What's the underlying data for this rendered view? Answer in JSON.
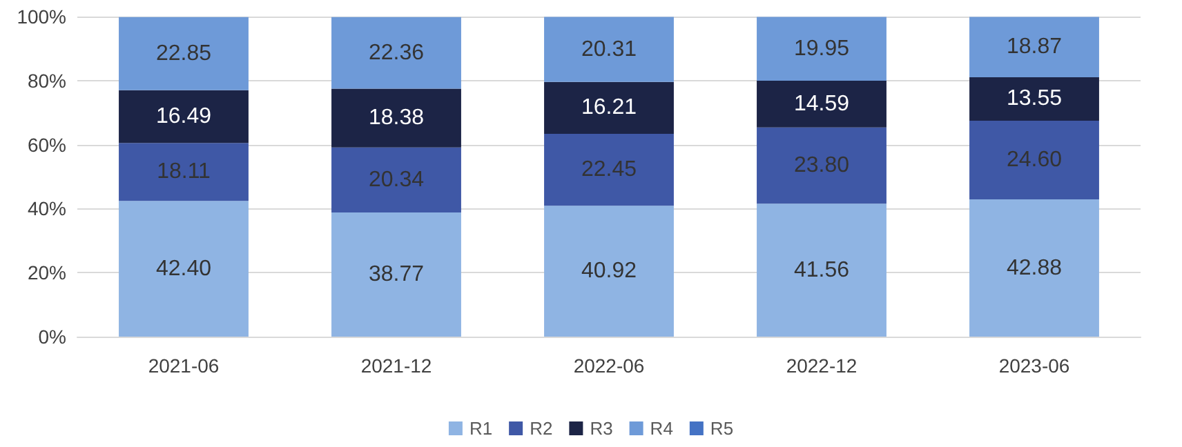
{
  "chart_data": {
    "type": "bar",
    "stacked": true,
    "categories": [
      "2021-06",
      "2021-12",
      "2022-06",
      "2022-12",
      "2023-06"
    ],
    "series": [
      {
        "name": "R1",
        "color": "#8fb4e3",
        "values": [
          42.4,
          38.77,
          40.92,
          41.56,
          42.88
        ],
        "value_labels": [
          "42.40",
          "38.77",
          "40.92",
          "41.56",
          "42.88"
        ]
      },
      {
        "name": "R2",
        "color": "#3f58a6",
        "values": [
          18.11,
          20.34,
          22.45,
          23.8,
          24.6
        ],
        "value_labels": [
          "18.11",
          "20.34",
          "22.45",
          "23.80",
          "24.60"
        ]
      },
      {
        "name": "R3",
        "color": "#1c2446",
        "values": [
          16.49,
          18.38,
          16.21,
          14.59,
          13.55
        ],
        "value_labels": [
          "16.49",
          "18.38",
          "16.21",
          "14.59",
          "13.55"
        ]
      },
      {
        "name": "R4",
        "color": "#6e9ad8",
        "values": [
          22.85,
          22.36,
          20.31,
          19.95,
          18.87
        ],
        "value_labels": [
          "22.85",
          "22.36",
          "20.31",
          "19.95",
          "18.87"
        ]
      },
      {
        "name": "R5",
        "color": "#4472c4",
        "values": [
          null,
          null,
          null,
          null,
          null
        ]
      }
    ],
    "ylim": [
      0,
      100
    ],
    "yticks": [
      {
        "value": 0,
        "label": "0%"
      },
      {
        "value": 20,
        "label": "20%"
      },
      {
        "value": 40,
        "label": "40%"
      },
      {
        "value": 60,
        "label": "60%"
      },
      {
        "value": 80,
        "label": "80%"
      },
      {
        "value": 100,
        "label": "100%"
      }
    ],
    "grid": "y",
    "legend": "bottom"
  }
}
